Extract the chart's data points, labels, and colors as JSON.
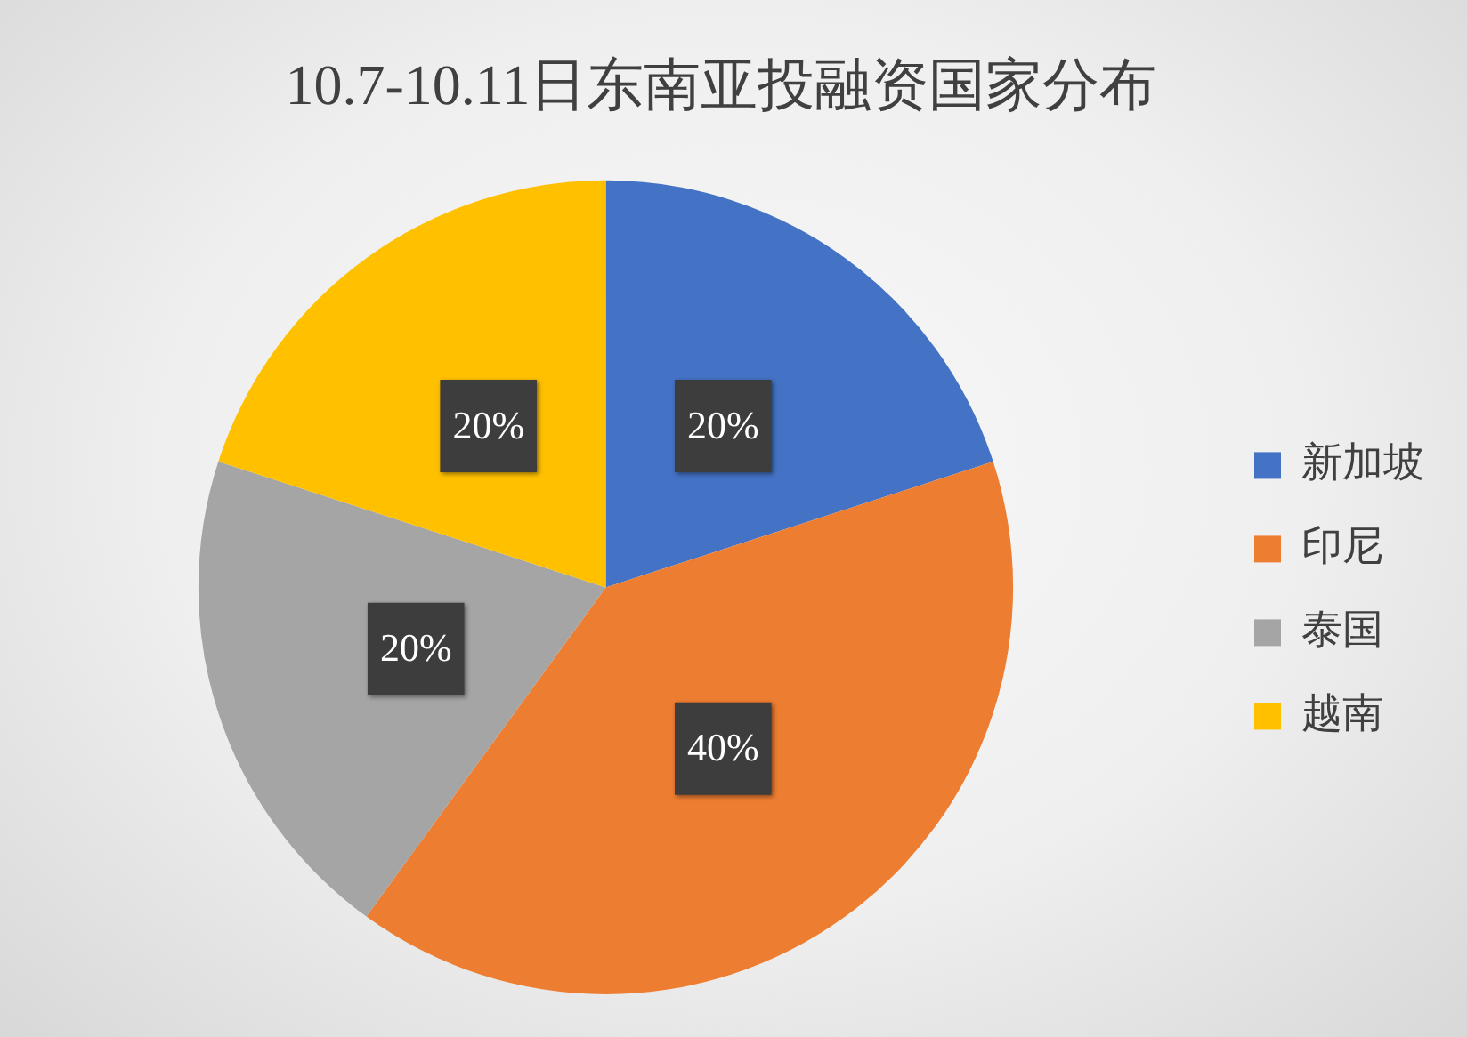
{
  "chart_data": {
    "type": "pie",
    "title": "10.7-10.11日东南亚投融资国家分布",
    "categories": [
      "新加坡",
      "印尼",
      "泰国",
      "越南"
    ],
    "values": [
      20,
      40,
      20,
      20
    ],
    "colors": [
      "#4472c4",
      "#ed7d31",
      "#a5a5a5",
      "#ffc000"
    ],
    "value_labels": [
      "20%",
      "40%",
      "20%",
      "20%"
    ],
    "legend": "right"
  }
}
